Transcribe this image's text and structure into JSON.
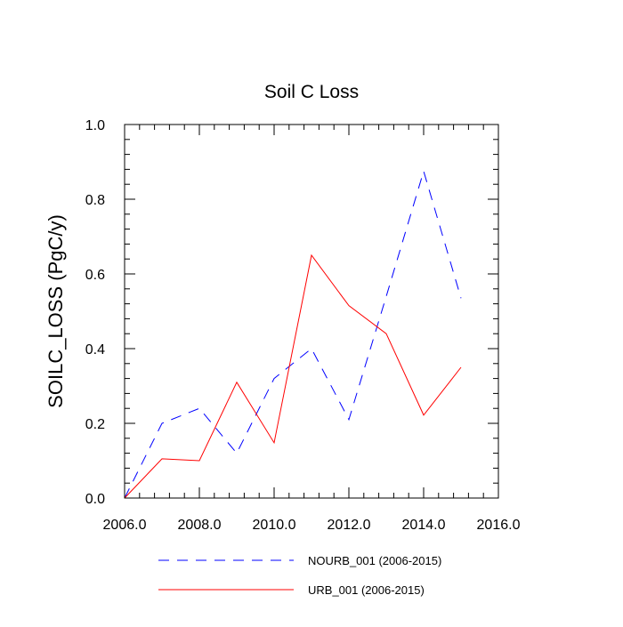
{
  "chart_data": {
    "type": "line",
    "title": "Soil C Loss",
    "xlabel": "",
    "ylabel": "SOILC_LOSS  (PgC/y)",
    "xlim": [
      2006,
      2016
    ],
    "ylim": [
      0,
      1.0
    ],
    "x_ticks": [
      2006,
      2008,
      2010,
      2012,
      2014,
      2016
    ],
    "x_tick_labels": [
      "2006.0",
      "2008.0",
      "2010.0",
      "2012.0",
      "2014.0",
      "2016.0"
    ],
    "y_ticks": [
      0,
      0.2,
      0.4,
      0.6,
      0.8,
      1.0
    ],
    "y_tick_labels": [
      "0.0",
      "0.2",
      "0.4",
      "0.6",
      "0.8",
      "1.0"
    ],
    "grid": false,
    "legend_position": "bottom",
    "x": [
      2006,
      2007,
      2008,
      2009,
      2010,
      2011,
      2012,
      2013,
      2014,
      2015
    ],
    "series": [
      {
        "name": "NOURB_001 (2006-2015)",
        "color": "#0000ff",
        "dash": "dashed",
        "values": [
          0.0,
          0.2,
          0.24,
          0.12,
          0.32,
          0.4,
          0.21,
          0.54,
          0.875,
          0.535
        ]
      },
      {
        "name": "URB_001 (2006-2015)",
        "color": "#ff0000",
        "dash": "solid",
        "values": [
          0.0,
          0.105,
          0.1,
          0.31,
          0.148,
          0.65,
          0.515,
          0.44,
          0.222,
          0.35
        ]
      }
    ]
  }
}
